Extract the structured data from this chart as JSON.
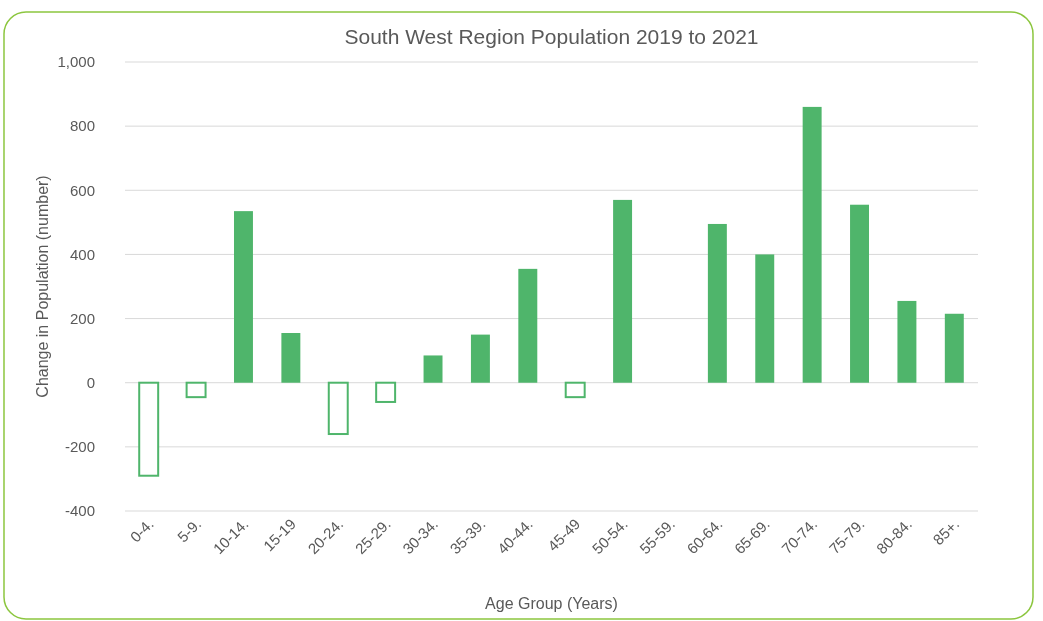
{
  "chart_data": {
    "type": "bar",
    "title": "South West Region Population 2019 to 2021",
    "xlabel": "Age Group (Years)",
    "ylabel": "Change in Population (number)",
    "categories": [
      "0-4.",
      "5-9.",
      "10-14.",
      "15-19",
      "20-24.",
      "25-29.",
      "30-34.",
      "35-39.",
      "40-44.",
      "45-49",
      "50-54.",
      "55-59.",
      "60-64.",
      "65-69.",
      "70-74.",
      "75-79.",
      "80-84.",
      "85+."
    ],
    "values": [
      -290,
      -45,
      535,
      155,
      -160,
      -60,
      85,
      150,
      355,
      -45,
      570,
      0,
      495,
      400,
      860,
      555,
      255,
      215
    ],
    "color": "#4fb56b",
    "ylim": [
      -400,
      1000
    ],
    "yticks": [
      -400,
      -200,
      0,
      200,
      400,
      600,
      800,
      {
        "value": 1000,
        "label": "1,000"
      }
    ],
    "grid": "y"
  }
}
